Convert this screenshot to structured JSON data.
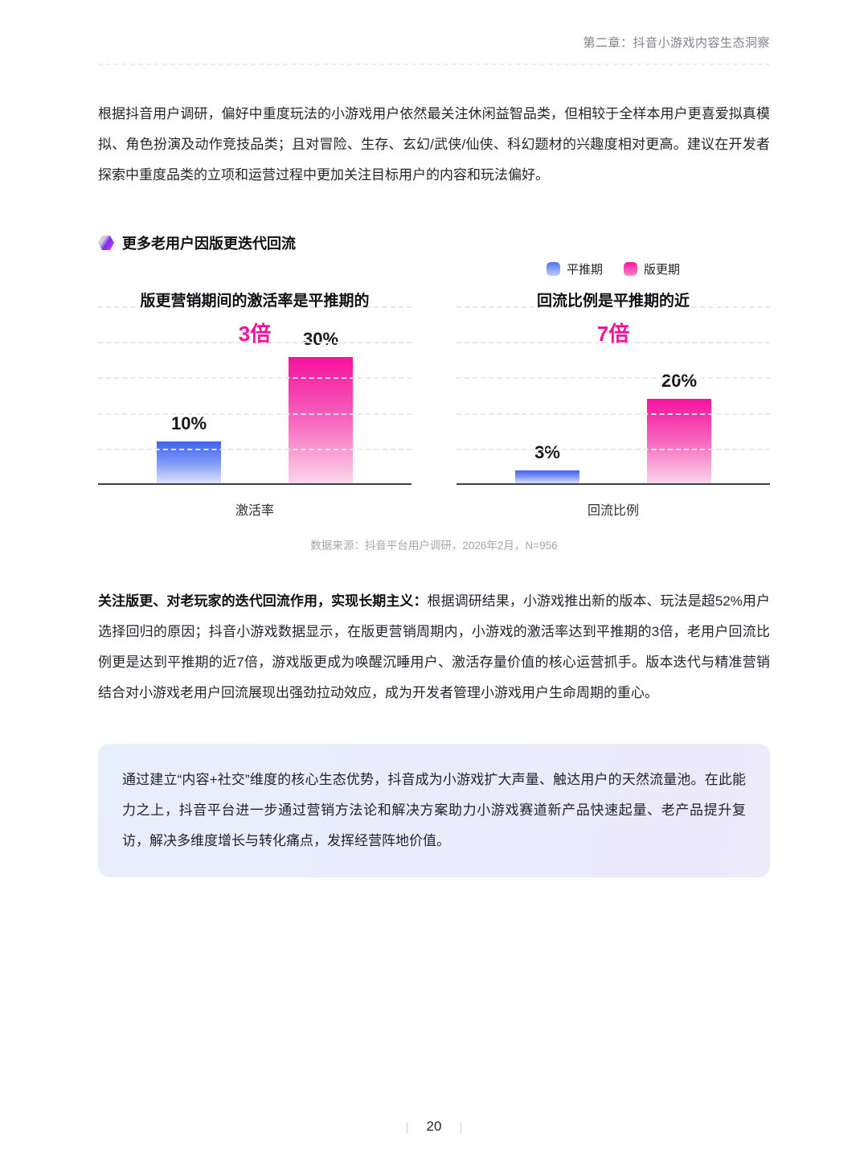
{
  "header": {
    "chapter": "第二章：抖音小游戏内容生态洞察"
  },
  "paragraph1": "根据抖音用户调研，偏好中重度玩法的小游戏用户依然最关注休闲益智品类，但相较于全样本用户更喜爱拟真模拟、角色扮演及动作竞技品类；且对冒险、生存、玄幻/武侠/仙侠、科幻题材的兴趣度相对更高。建议在开发者探索中重度品类的立项和运营过程中更加关注目标用户的内容和玩法偏好。",
  "section": {
    "title": "更多老用户因版更迭代回流"
  },
  "legend": [
    {
      "label": "平推期",
      "color_top": "#4e74f2",
      "color_bottom": "#bcccfa"
    },
    {
      "label": "版更期",
      "color_top": "#fb149d",
      "color_bottom": "#fd87cd"
    }
  ],
  "palette": {
    "accent_pink": "#f5119d",
    "bar_blue": {
      "top": "#3d63ee",
      "mid": "#7e98f5",
      "bottom": "#dbe3fb"
    },
    "bar_pink": {
      "top": "#f5119d",
      "mid": "#f766bd",
      "bottom": "#fbd6ea"
    }
  },
  "chart_data": [
    {
      "type": "bar",
      "title": "版更营销期间的激活率是平推期的",
      "multiplier": "3倍",
      "categories": [
        "平推期",
        "版更期"
      ],
      "values": [
        10,
        30
      ],
      "value_labels": [
        "10%",
        "30%"
      ],
      "series_keys": [
        "bar_blue",
        "bar_pink"
      ],
      "xlabel": "激活率",
      "ylim": [
        0,
        44
      ],
      "grid": true,
      "legend_position": "top-right"
    },
    {
      "type": "bar",
      "title": "回流比例是平推期的近",
      "multiplier": "7倍",
      "categories": [
        "平推期",
        "版更期"
      ],
      "values": [
        3,
        20
      ],
      "value_labels": [
        "3%",
        "20%"
      ],
      "series_keys": [
        "bar_blue",
        "bar_pink"
      ],
      "xlabel": "回流比例",
      "ylim": [
        0,
        44
      ],
      "grid": true,
      "legend_position": "top-right"
    }
  ],
  "source_note": "数据来源：抖音平台用户调研，2026年2月，N=956",
  "paragraph2": {
    "bold": "关注版更、对老玩家的迭代回流作用，实现长期主义：",
    "text": "根据调研结果，小游戏推出新的版本、玩法是超52%用户选择回归的原因；抖音小游戏数据显示，在版更营销周期内，小游戏的激活率达到平推期的3倍，老用户回流比例更是达到平推期的近7倍，游戏版更成为唤醒沉睡用户、激活存量价值的核心运营抓手。版本迭代与精准营销结合对小游戏老用户回流展现出强劲拉动效应，成为开发者管理小游戏用户生命周期的重心。"
  },
  "callout": "通过建立“内容+社交”维度的核心生态优势，抖音成为小游戏扩大声量、触达用户的天然流量池。在此能力之上，抖音平台进一步通过营销方法论和解决方案助力小游戏赛道新产品快速起量、老产品提升复访，解决多维度增长与转化痛点，发挥经营阵地价值。",
  "footer": {
    "page_number": "20"
  }
}
